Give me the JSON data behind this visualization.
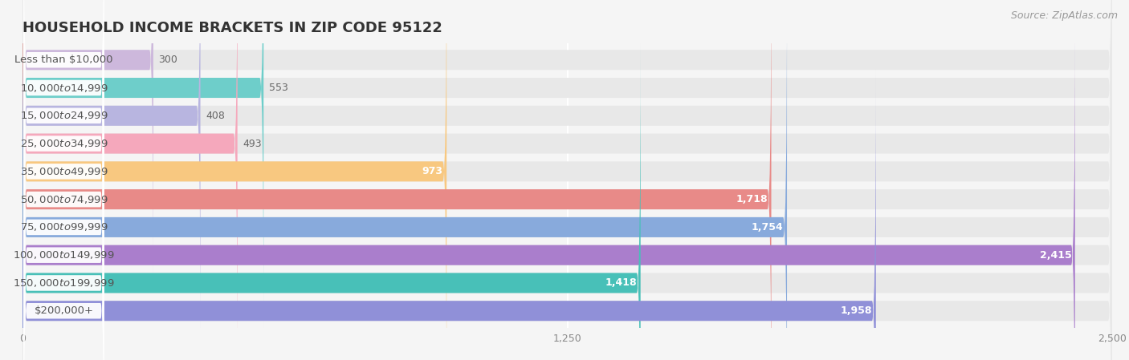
{
  "title": "HOUSEHOLD INCOME BRACKETS IN ZIP CODE 95122",
  "source": "Source: ZipAtlas.com",
  "categories": [
    "Less than $10,000",
    "$10,000 to $14,999",
    "$15,000 to $24,999",
    "$25,000 to $34,999",
    "$35,000 to $49,999",
    "$50,000 to $74,999",
    "$75,000 to $99,999",
    "$100,000 to $149,999",
    "$150,000 to $199,999",
    "$200,000+"
  ],
  "values": [
    300,
    553,
    408,
    493,
    973,
    1718,
    1754,
    2415,
    1418,
    1958
  ],
  "colors": [
    "#cdb8dc",
    "#6ececa",
    "#b8b5e0",
    "#f5a8bc",
    "#f8c880",
    "#e88a88",
    "#88aadc",
    "#aa7ecc",
    "#48c0b8",
    "#9090d8"
  ],
  "xlim": [
    0,
    2500
  ],
  "xticks": [
    0,
    1250,
    2500
  ],
  "background_color": "#f5f5f5",
  "bar_bg_color": "#e8e8e8",
  "title_fontsize": 13,
  "label_fontsize": 9.5,
  "value_fontsize": 9,
  "source_fontsize": 9,
  "bar_height": 0.72,
  "value_threshold": 650
}
